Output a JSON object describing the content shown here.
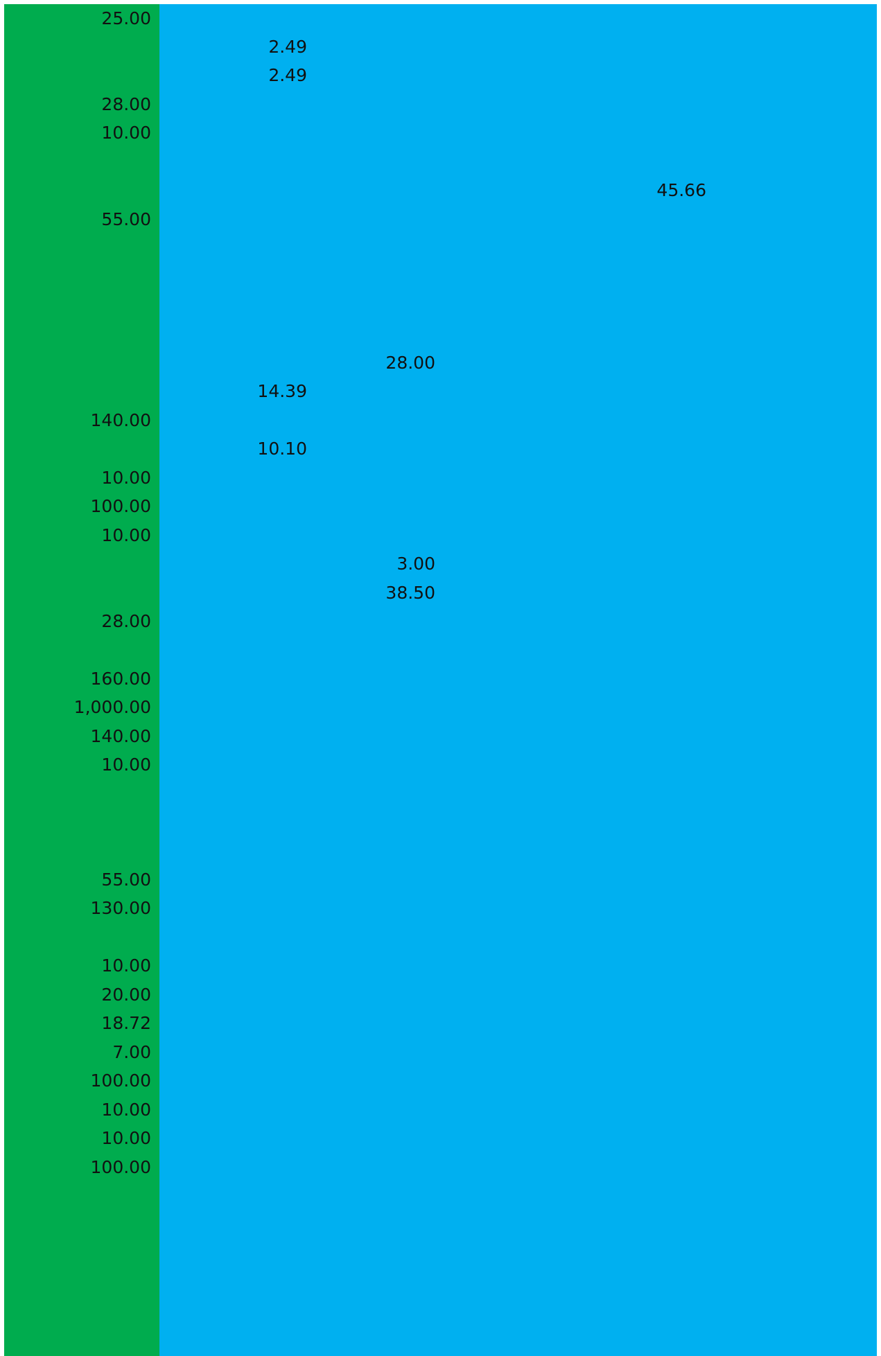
{
  "table": {
    "rows": [
      [
        "25.00",
        null,
        null,
        null
      ],
      [
        null,
        "2.49",
        null,
        null
      ],
      [
        null,
        "2.49",
        null,
        null
      ],
      [
        "28.00",
        null,
        null,
        null
      ],
      [
        "10.00",
        null,
        null,
        null
      ],
      [
        null,
        null,
        null,
        null
      ],
      [
        null,
        null,
        null,
        "45.66"
      ],
      [
        "55.00",
        null,
        null,
        null
      ],
      [
        null,
        null,
        null,
        null
      ],
      [
        null,
        null,
        null,
        null
      ],
      [
        null,
        null,
        null,
        null
      ],
      [
        null,
        null,
        null,
        null
      ],
      [
        null,
        null,
        "28.00",
        null
      ],
      [
        null,
        "14.39",
        null,
        null
      ],
      [
        "140.00",
        null,
        null,
        null
      ],
      [
        null,
        "10.10",
        null,
        null
      ],
      [
        "10.00",
        null,
        null,
        null
      ],
      [
        "100.00",
        null,
        null,
        null
      ],
      [
        "10.00",
        null,
        null,
        null
      ],
      [
        null,
        null,
        "3.00",
        null
      ],
      [
        null,
        null,
        "38.50",
        null
      ],
      [
        "28.00",
        null,
        null,
        null
      ],
      [
        null,
        null,
        null,
        null
      ],
      [
        "160.00",
        null,
        null,
        null
      ],
      [
        "1,000.00",
        null,
        null,
        null
      ],
      [
        "140.00",
        null,
        null,
        null
      ],
      [
        "10.00",
        null,
        null,
        null
      ],
      [
        null,
        null,
        null,
        null
      ],
      [
        null,
        null,
        null,
        null
      ],
      [
        null,
        null,
        null,
        null
      ],
      [
        "55.00",
        null,
        null,
        null
      ],
      [
        "130.00",
        null,
        null,
        null
      ],
      [
        null,
        null,
        null,
        null
      ],
      [
        "10.00",
        null,
        null,
        null
      ],
      [
        "20.00",
        null,
        null,
        null
      ],
      [
        "18.72",
        null,
        null,
        null
      ],
      [
        "7.00",
        null,
        null,
        null
      ],
      [
        "100.00",
        null,
        null,
        null
      ],
      [
        "10.00",
        null,
        null,
        null
      ],
      [
        "10.00",
        null,
        null,
        null
      ],
      [
        "100.00",
        null,
        null,
        null
      ]
    ]
  }
}
